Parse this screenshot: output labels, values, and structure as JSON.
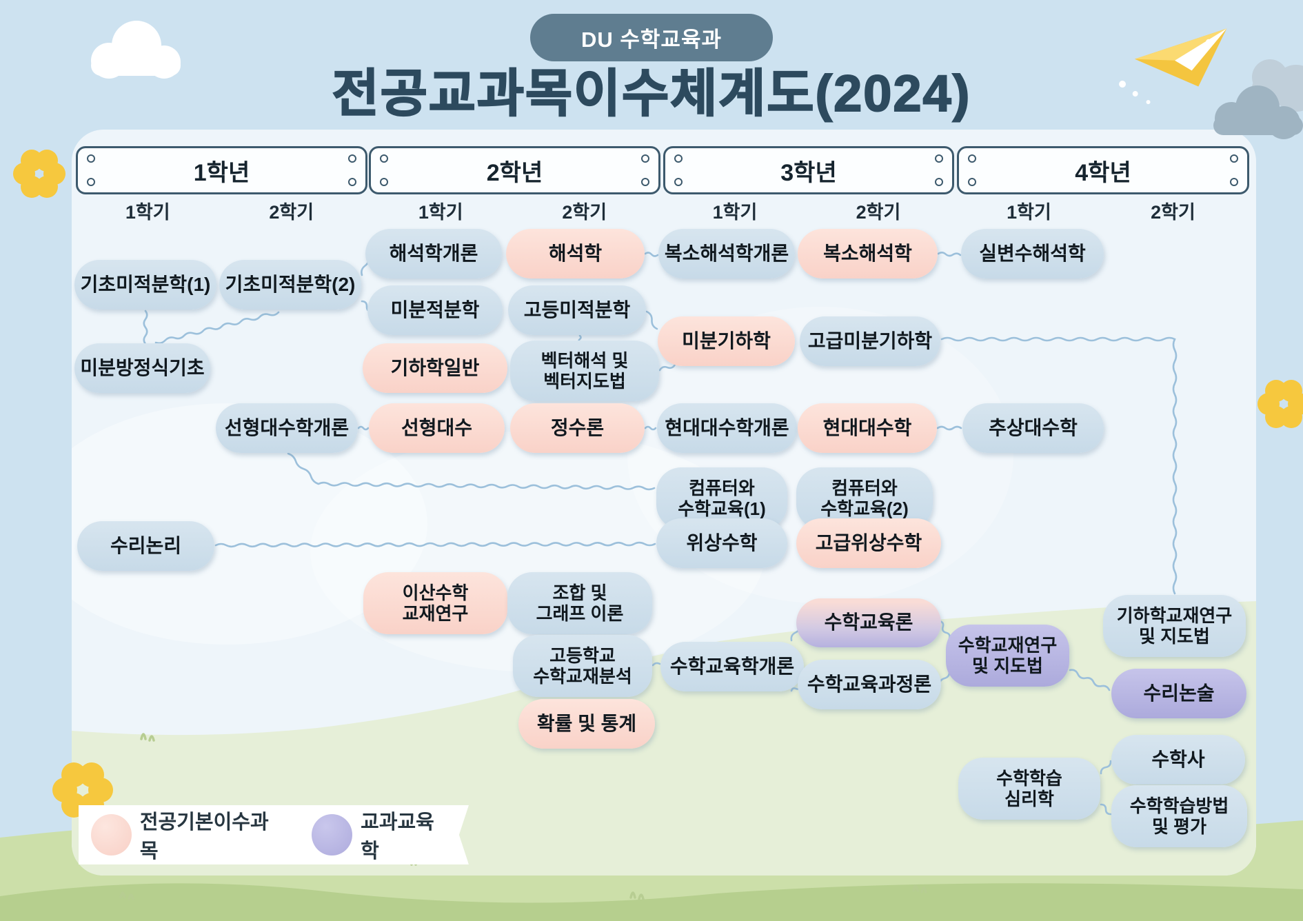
{
  "badge": {
    "label": "DU 수학교육과"
  },
  "title": "전공교과목이수체계도(2024)",
  "years": [
    {
      "label": "1학년",
      "semesters": [
        "1학기",
        "2학기"
      ]
    },
    {
      "label": "2학년",
      "semesters": [
        "1학기",
        "2학기"
      ]
    },
    {
      "label": "3학년",
      "semesters": [
        "1학기",
        "2학기"
      ]
    },
    {
      "label": "4학년",
      "semesters": [
        "1학기",
        "2학기"
      ]
    }
  ],
  "colors": {
    "blue_course": "#cddfeb",
    "pink_course": "#fbd9d0",
    "purple_course": "#b7b4e2",
    "connector": "#9cc0db",
    "badge_bg": "#5f7d90",
    "title_text": "#2d4a5e",
    "sky": "#cde2f0",
    "panel": "#eef5fa",
    "hill_inner": "#e6efd8",
    "hill_outer": "#ccdfa9",
    "hill_dark": "#b6cf8e"
  },
  "legend": {
    "items": [
      {
        "type": "pink",
        "label": "전공기본이수과목"
      },
      {
        "type": "purple",
        "label": "교과교육학"
      }
    ]
  },
  "courses": [
    {
      "id": "basic-calc-1",
      "lines": [
        "기초미적분학(1)"
      ],
      "type": "blue",
      "year": 1,
      "semester": 1
    },
    {
      "id": "basic-calc-2",
      "lines": [
        "기초미적분학(2)"
      ],
      "type": "blue",
      "year": 1,
      "semester": 2
    },
    {
      "id": "intro-differential-equations",
      "lines": [
        "미분방정식기초"
      ],
      "type": "blue",
      "year": 1,
      "semester": 1
    },
    {
      "id": "mathematical-logic",
      "lines": [
        "수리논리"
      ],
      "type": "blue",
      "year": 1,
      "semester": 1
    },
    {
      "id": "intro-linear-algebra",
      "lines": [
        "선형대수학개론"
      ],
      "type": "blue",
      "year": 1,
      "semester": 2
    },
    {
      "id": "intro-analysis",
      "lines": [
        "해석학개론"
      ],
      "type": "blue",
      "year": 2,
      "semester": 1
    },
    {
      "id": "differential-integral-calculus",
      "lines": [
        "미분적분학"
      ],
      "type": "blue",
      "year": 2,
      "semester": 1
    },
    {
      "id": "general-geometry",
      "lines": [
        "기하학일반"
      ],
      "type": "pink",
      "year": 2,
      "semester": 1
    },
    {
      "id": "linear-algebra",
      "lines": [
        "선형대수"
      ],
      "type": "pink",
      "year": 2,
      "semester": 1
    },
    {
      "id": "discrete-math-textbook",
      "lines": [
        "이산수학",
        "교재연구"
      ],
      "type": "pink",
      "year": 2,
      "semester": 1
    },
    {
      "id": "analysis",
      "lines": [
        "해석학"
      ],
      "type": "pink",
      "year": 2,
      "semester": 2
    },
    {
      "id": "advanced-calculus",
      "lines": [
        "고등미적분학"
      ],
      "type": "blue",
      "year": 2,
      "semester": 2
    },
    {
      "id": "vector-analysis",
      "lines": [
        "벡터해석 및",
        "벡터지도법"
      ],
      "type": "blue",
      "year": 2,
      "semester": 2
    },
    {
      "id": "number-theory",
      "lines": [
        "정수론"
      ],
      "type": "pink",
      "year": 2,
      "semester": 2
    },
    {
      "id": "combinatorics-graph",
      "lines": [
        "조합 및",
        "그래프 이론"
      ],
      "type": "blue",
      "year": 2,
      "semester": 2
    },
    {
      "id": "hs-textbook-analysis",
      "lines": [
        "고등학교",
        "수학교재분석"
      ],
      "type": "blue",
      "year": 2,
      "semester": 2
    },
    {
      "id": "probability-statistics",
      "lines": [
        "확률 및 통계"
      ],
      "type": "pink",
      "year": 2,
      "semester": 2
    },
    {
      "id": "intro-complex-analysis",
      "lines": [
        "복소해석학개론"
      ],
      "type": "blue",
      "year": 3,
      "semester": 1
    },
    {
      "id": "differential-geometry",
      "lines": [
        "미분기하학"
      ],
      "type": "pink",
      "year": 3,
      "semester": 1
    },
    {
      "id": "intro-modern-algebra",
      "lines": [
        "현대대수학개론"
      ],
      "type": "blue",
      "year": 3,
      "semester": 1
    },
    {
      "id": "computer-math-edu-1",
      "lines": [
        "컴퓨터와",
        "수학교육(1)"
      ],
      "type": "blue",
      "year": 3,
      "semester": 1
    },
    {
      "id": "topology",
      "lines": [
        "위상수학"
      ],
      "type": "blue",
      "year": 3,
      "semester": 1
    },
    {
      "id": "intro-math-education",
      "lines": [
        "수학교육학개론"
      ],
      "type": "blue",
      "year": 3,
      "semester": 1
    },
    {
      "id": "complex-analysis",
      "lines": [
        "복소해석학"
      ],
      "type": "pink",
      "year": 3,
      "semester": 2
    },
    {
      "id": "advanced-differential-geometry",
      "lines": [
        "고급미분기하학"
      ],
      "type": "blue",
      "year": 3,
      "semester": 2
    },
    {
      "id": "modern-algebra",
      "lines": [
        "현대대수학"
      ],
      "type": "pink",
      "year": 3,
      "semester": 2
    },
    {
      "id": "computer-math-edu-2",
      "lines": [
        "컴퓨터와",
        "수학교육(2)"
      ],
      "type": "blue",
      "year": 3,
      "semester": 2
    },
    {
      "id": "advanced-topology",
      "lines": [
        "고급위상수학"
      ],
      "type": "pink",
      "year": 3,
      "semester": 2
    },
    {
      "id": "math-education-theory",
      "lines": [
        "수학교육론"
      ],
      "type": "mixed",
      "year": 3,
      "semester": 2
    },
    {
      "id": "math-curriculum-theory",
      "lines": [
        "수학교육과정론"
      ],
      "type": "blue",
      "year": 3,
      "semester": 2
    },
    {
      "id": "real-variable-analysis",
      "lines": [
        "실변수해석학"
      ],
      "type": "blue",
      "year": 4,
      "semester": 1
    },
    {
      "id": "abstract-algebra",
      "lines": [
        "추상대수학"
      ],
      "type": "blue",
      "year": 4,
      "semester": 1
    },
    {
      "id": "textbook-research",
      "lines": [
        "수학교재연구",
        "및 지도법"
      ],
      "type": "purple",
      "year": 4,
      "semester": 1
    },
    {
      "id": "math-learning-psychology",
      "lines": [
        "수학학습",
        "심리학"
      ],
      "type": "blue",
      "year": 4,
      "semester": 1
    },
    {
      "id": "geometry-textbook-research",
      "lines": [
        "기하학교재연구",
        "및 지도법"
      ],
      "type": "blue",
      "year": 4,
      "semester": 2
    },
    {
      "id": "math-essay",
      "lines": [
        "수리논술"
      ],
      "type": "purple",
      "year": 4,
      "semester": 2
    },
    {
      "id": "history-of-math",
      "lines": [
        "수학사"
      ],
      "type": "blue",
      "year": 4,
      "semester": 2
    },
    {
      "id": "math-learning-methods",
      "lines": [
        "수학학습방법",
        "및 평가"
      ],
      "type": "blue",
      "year": 4,
      "semester": 2
    }
  ]
}
